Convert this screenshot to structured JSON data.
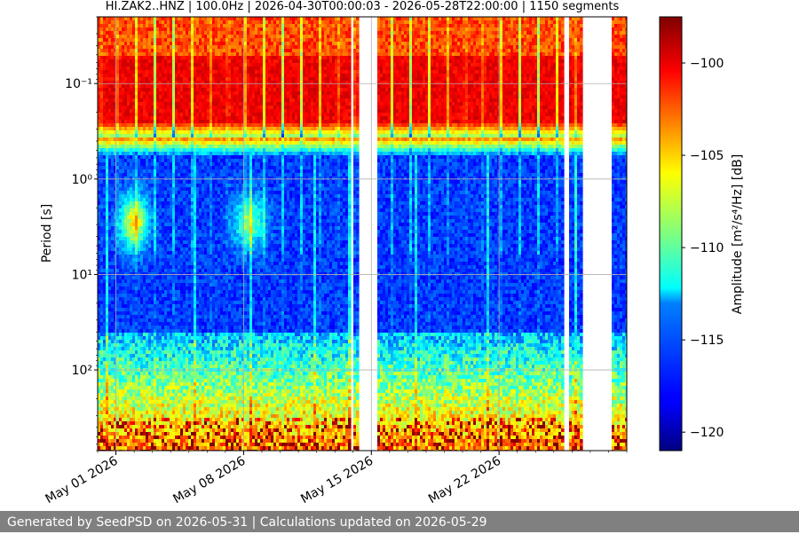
{
  "footer_text": "Generated by SeedPSD on 2026-05-31 | Calculations updated on 2026-05-29",
  "chart_data": {
    "type": "heatmap",
    "title": "HI.ZAK2..HNZ | 100.0Hz | 2026-04-30T00:00:03 - 2026-05-28T22:00:00 | 1150 segments",
    "ylabel": "Period [s]",
    "xlabel": "",
    "x_ticks": [
      "May 01 2026",
      "May 08 2026",
      "May 15 2026",
      "May 22 2026"
    ],
    "x_tick_dates": [
      "2026-05-01",
      "2026-05-08",
      "2026-05-15",
      "2026-05-22"
    ],
    "xlim": [
      "2026-04-30",
      "2026-05-29"
    ],
    "y_scale": "log",
    "y_inverted": true,
    "ylim": [
      0.02,
      700
    ],
    "y_ticks": [
      0.1,
      1,
      10,
      100
    ],
    "y_tick_labels": [
      "10⁻¹",
      "10⁰",
      "10¹",
      "10²"
    ],
    "grid": true,
    "colormap": "jet",
    "colorbar": {
      "label": "Amplitude [m²/s⁴/Hz] [dB]",
      "range": [
        -121,
        -97.5
      ],
      "ticks": [
        -100,
        -105,
        -110,
        -115,
        -120
      ],
      "tick_labels": [
        "−100",
        "−105",
        "−110",
        "−115",
        "−120"
      ]
    },
    "data_gaps": [
      [
        "2026-05-13T21:00",
        "2026-05-14T02:00"
      ],
      [
        "2026-05-14T06:00",
        "2026-05-15T07:00"
      ],
      [
        "2026-05-25T13:00",
        "2026-05-25T19:00"
      ],
      [
        "2026-05-26T13:00",
        "2026-05-28T05:00"
      ]
    ],
    "segments": 1150
  }
}
